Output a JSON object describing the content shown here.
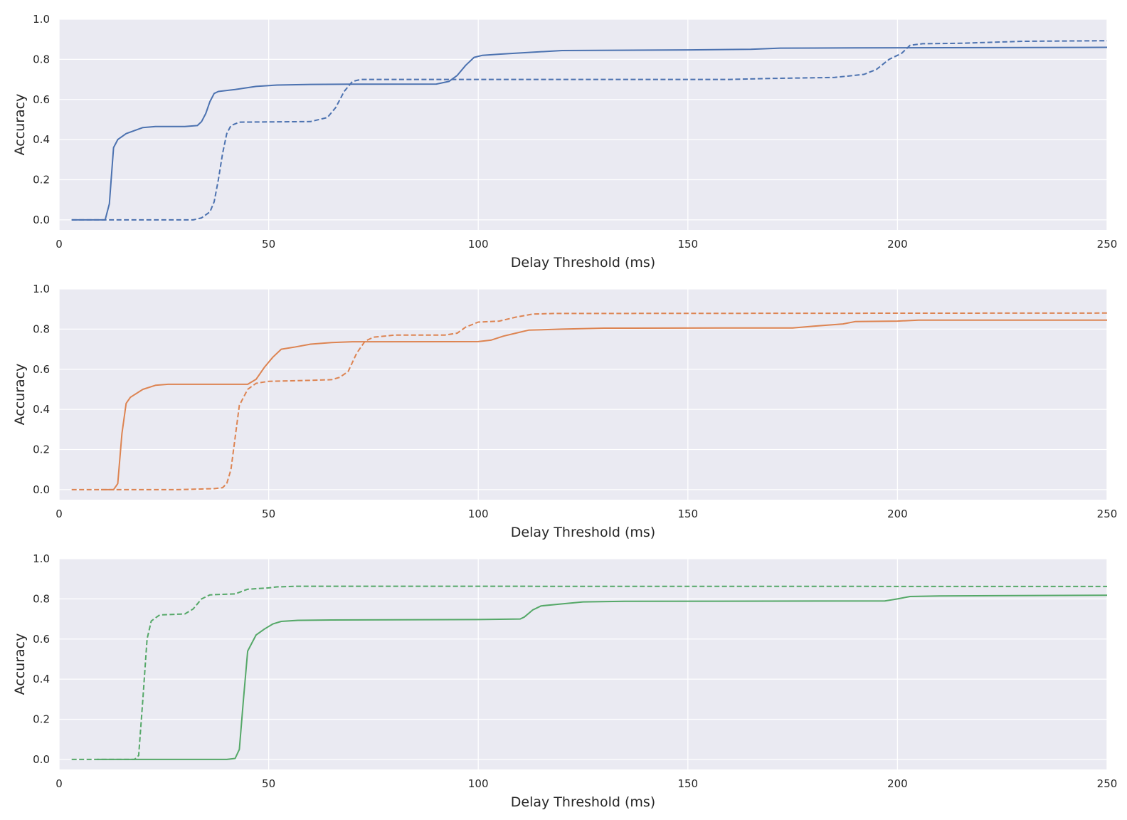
{
  "chart_data": [
    {
      "type": "line",
      "xlabel": "Delay Threshold (ms)",
      "ylabel": "Accuracy",
      "xlim": [
        0,
        250
      ],
      "ylim": [
        -0.05,
        1.0
      ],
      "xticks": [
        "0",
        "50",
        "100",
        "150",
        "200",
        "250"
      ],
      "yticks": [
        "0.0",
        "0.2",
        "0.4",
        "0.6",
        "0.8",
        "1.0"
      ],
      "grid": true,
      "series": [
        {
          "style": "solid",
          "color": "#4c72b0",
          "points": [
            [
              3,
              0
            ],
            [
              11,
              0
            ],
            [
              12,
              0.08
            ],
            [
              13,
              0.36
            ],
            [
              14,
              0.4
            ],
            [
              16,
              0.43
            ],
            [
              20,
              0.46
            ],
            [
              23,
              0.465
            ],
            [
              30,
              0.465
            ],
            [
              33,
              0.47
            ],
            [
              34,
              0.49
            ],
            [
              35,
              0.53
            ],
            [
              36,
              0.59
            ],
            [
              37,
              0.63
            ],
            [
              38,
              0.64
            ],
            [
              42,
              0.65
            ],
            [
              47,
              0.665
            ],
            [
              52,
              0.672
            ],
            [
              60,
              0.675
            ],
            [
              70,
              0.676
            ],
            [
              90,
              0.677
            ],
            [
              93,
              0.69
            ],
            [
              95,
              0.72
            ],
            [
              97,
              0.77
            ],
            [
              99,
              0.81
            ],
            [
              101,
              0.82
            ],
            [
              105,
              0.826
            ],
            [
              110,
              0.832
            ],
            [
              120,
              0.844
            ],
            [
              150,
              0.847
            ],
            [
              165,
              0.85
            ],
            [
              172,
              0.856
            ],
            [
              190,
              0.857
            ],
            [
              250,
              0.86
            ]
          ]
        },
        {
          "style": "dashed",
          "color": "#4c72b0",
          "points": [
            [
              3,
              0
            ],
            [
              32,
              0
            ],
            [
              34,
              0.01
            ],
            [
              36,
              0.04
            ],
            [
              37,
              0.09
            ],
            [
              38,
              0.2
            ],
            [
              39,
              0.33
            ],
            [
              40,
              0.43
            ],
            [
              41,
              0.47
            ],
            [
              43,
              0.487
            ],
            [
              60,
              0.49
            ],
            [
              64,
              0.51
            ],
            [
              66,
              0.56
            ],
            [
              68,
              0.64
            ],
            [
              70,
              0.69
            ],
            [
              72,
              0.7
            ],
            [
              100,
              0.7
            ],
            [
              160,
              0.7
            ],
            [
              170,
              0.705
            ],
            [
              185,
              0.71
            ],
            [
              192,
              0.725
            ],
            [
              195,
              0.75
            ],
            [
              198,
              0.8
            ],
            [
              201,
              0.83
            ],
            [
              203,
              0.87
            ],
            [
              206,
              0.878
            ],
            [
              215,
              0.88
            ],
            [
              230,
              0.89
            ],
            [
              250,
              0.893
            ]
          ]
        }
      ]
    },
    {
      "type": "line",
      "xlabel": "Delay Threshold (ms)",
      "ylabel": "Accuracy",
      "xlim": [
        0,
        250
      ],
      "ylim": [
        -0.05,
        1.0
      ],
      "xticks": [
        "0",
        "50",
        "100",
        "150",
        "200",
        "250"
      ],
      "yticks": [
        "0.0",
        "0.2",
        "0.4",
        "0.6",
        "0.8",
        "1.0"
      ],
      "grid": true,
      "series": [
        {
          "style": "solid",
          "color": "#dd8452",
          "points": [
            [
              10,
              0
            ],
            [
              13,
              0
            ],
            [
              14,
              0.03
            ],
            [
              15,
              0.28
            ],
            [
              16,
              0.43
            ],
            [
              17,
              0.46
            ],
            [
              20,
              0.5
            ],
            [
              23,
              0.52
            ],
            [
              26,
              0.525
            ],
            [
              45,
              0.525
            ],
            [
              47,
              0.55
            ],
            [
              49,
              0.61
            ],
            [
              51,
              0.66
            ],
            [
              53,
              0.7
            ],
            [
              56,
              0.71
            ],
            [
              60,
              0.725
            ],
            [
              65,
              0.733
            ],
            [
              70,
              0.737
            ],
            [
              100,
              0.738
            ],
            [
              103,
              0.745
            ],
            [
              106,
              0.765
            ],
            [
              109,
              0.78
            ],
            [
              112,
              0.795
            ],
            [
              120,
              0.8
            ],
            [
              130,
              0.805
            ],
            [
              175,
              0.806
            ],
            [
              180,
              0.815
            ],
            [
              187,
              0.826
            ],
            [
              190,
              0.838
            ],
            [
              200,
              0.84
            ],
            [
              205,
              0.845
            ],
            [
              250,
              0.845
            ]
          ]
        },
        {
          "style": "dashed",
          "color": "#dd8452",
          "points": [
            [
              3,
              0
            ],
            [
              28,
              0
            ],
            [
              37,
              0.005
            ],
            [
              39,
              0.01
            ],
            [
              40,
              0.03
            ],
            [
              41,
              0.1
            ],
            [
              42,
              0.26
            ],
            [
              43,
              0.42
            ],
            [
              45,
              0.5
            ],
            [
              47,
              0.53
            ],
            [
              50,
              0.54
            ],
            [
              60,
              0.545
            ],
            [
              65,
              0.548
            ],
            [
              67,
              0.56
            ],
            [
              69,
              0.59
            ],
            [
              71,
              0.68
            ],
            [
              73,
              0.74
            ],
            [
              75,
              0.76
            ],
            [
              80,
              0.77
            ],
            [
              92,
              0.77
            ],
            [
              95,
              0.78
            ],
            [
              97,
              0.81
            ],
            [
              100,
              0.835
            ],
            [
              105,
              0.84
            ],
            [
              109,
              0.86
            ],
            [
              113,
              0.875
            ],
            [
              118,
              0.878
            ],
            [
              250,
              0.88
            ]
          ]
        }
      ]
    },
    {
      "type": "line",
      "xlabel": "Delay Threshold (ms)",
      "ylabel": "Accuracy",
      "xlim": [
        0,
        250
      ],
      "ylim": [
        -0.05,
        1.0
      ],
      "xticks": [
        "0",
        "50",
        "100",
        "150",
        "200",
        "250"
      ],
      "yticks": [
        "0.0",
        "0.2",
        "0.4",
        "0.6",
        "0.8",
        "1.0"
      ],
      "grid": true,
      "series": [
        {
          "style": "solid",
          "color": "#55a868",
          "points": [
            [
              9,
              0
            ],
            [
              40,
              0
            ],
            [
              42,
              0.005
            ],
            [
              43,
              0.05
            ],
            [
              44,
              0.3
            ],
            [
              45,
              0.54
            ],
            [
              46,
              0.58
            ],
            [
              47,
              0.62
            ],
            [
              49,
              0.65
            ],
            [
              51,
              0.675
            ],
            [
              53,
              0.688
            ],
            [
              57,
              0.693
            ],
            [
              65,
              0.695
            ],
            [
              100,
              0.697
            ],
            [
              110,
              0.7
            ],
            [
              111,
              0.71
            ],
            [
              113,
              0.745
            ],
            [
              115,
              0.765
            ],
            [
              120,
              0.775
            ],
            [
              125,
              0.785
            ],
            [
              135,
              0.788
            ],
            [
              197,
              0.79
            ],
            [
              200,
              0.8
            ],
            [
              203,
              0.812
            ],
            [
              210,
              0.815
            ],
            [
              250,
              0.818
            ]
          ]
        },
        {
          "style": "dashed",
          "color": "#55a868",
          "points": [
            [
              3,
              0
            ],
            [
              18,
              0
            ],
            [
              19,
              0.02
            ],
            [
              20,
              0.3
            ],
            [
              21,
              0.6
            ],
            [
              22,
              0.69
            ],
            [
              24,
              0.72
            ],
            [
              30,
              0.725
            ],
            [
              32,
              0.75
            ],
            [
              34,
              0.8
            ],
            [
              36,
              0.82
            ],
            [
              42,
              0.825
            ],
            [
              45,
              0.848
            ],
            [
              50,
              0.855
            ],
            [
              52,
              0.86
            ],
            [
              57,
              0.863
            ],
            [
              250,
              0.862
            ]
          ]
        }
      ]
    }
  ]
}
